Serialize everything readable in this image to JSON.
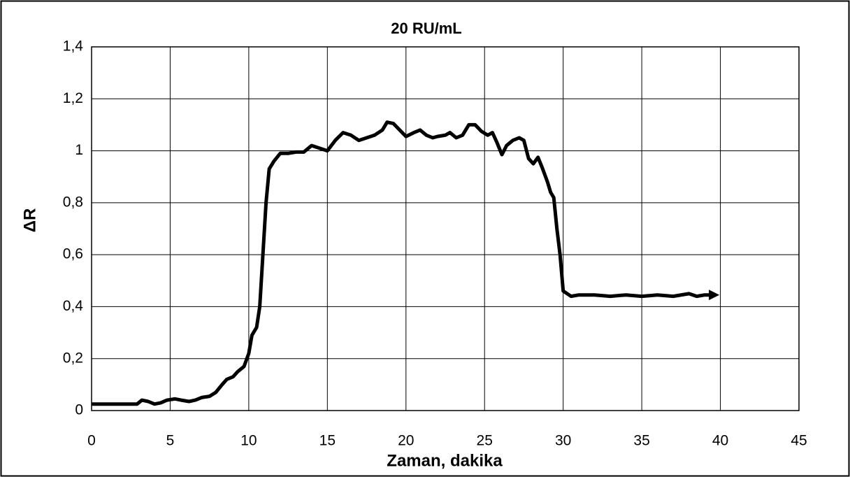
{
  "chart_data": {
    "type": "line",
    "title": "20 RU/mL",
    "xlabel": "Zaman, dakika",
    "ylabel": "ΔR",
    "color": "#000000",
    "grid": true,
    "xlim": [
      0,
      45
    ],
    "xticks": [
      0,
      5,
      10,
      15,
      20,
      25,
      30,
      35,
      40,
      45
    ],
    "ylim": [
      0,
      1.4
    ],
    "yticks": [
      0,
      {
        "value": 0.2,
        "label": "0,2"
      },
      {
        "value": 0.4,
        "label": "0,4"
      },
      {
        "value": 0.6,
        "label": "0,6"
      },
      {
        "value": 0.8,
        "label": "0,8"
      },
      1,
      {
        "value": 1.2,
        "label": "1,2"
      },
      {
        "value": 1.4,
        "label": "1,4"
      }
    ],
    "x": [
      0,
      1,
      2,
      2.9,
      3.2,
      3.6,
      4,
      4.4,
      4.8,
      5.3,
      5.7,
      6.2,
      6.6,
      7,
      7.5,
      7.9,
      8.3,
      8.6,
      9,
      9.3,
      9.7,
      10,
      10.2,
      10.5,
      10.7,
      10.9,
      11.1,
      11.3,
      11.6,
      12,
      12.5,
      13,
      13.5,
      14,
      14.5,
      15,
      15.5,
      16,
      16.5,
      17,
      17.5,
      18,
      18.5,
      18.8,
      19.2,
      19.6,
      20,
      20.5,
      20.9,
      21.3,
      21.7,
      22,
      22.5,
      22.8,
      23.2,
      23.6,
      24,
      24.4,
      24.8,
      25.2,
      25.5,
      25.8,
      26.1,
      26.4,
      26.8,
      27.2,
      27.5,
      27.8,
      28.1,
      28.4,
      28.7,
      29,
      29.2,
      29.4,
      29.6,
      29.8,
      30,
      30.5,
      31,
      32,
      33,
      34,
      35,
      36,
      37,
      38,
      38.5,
      39,
      39.6
    ],
    "values": [
      0.025,
      0.025,
      0.025,
      0.025,
      0.04,
      0.035,
      0.025,
      0.03,
      0.04,
      0.045,
      0.04,
      0.035,
      0.04,
      0.05,
      0.055,
      0.07,
      0.1,
      0.12,
      0.13,
      0.15,
      0.17,
      0.22,
      0.29,
      0.32,
      0.4,
      0.6,
      0.8,
      0.93,
      0.96,
      0.99,
      0.99,
      0.995,
      0.995,
      1.02,
      1.01,
      1.0,
      1.04,
      1.07,
      1.06,
      1.04,
      1.05,
      1.06,
      1.08,
      1.11,
      1.105,
      1.08,
      1.055,
      1.07,
      1.08,
      1.06,
      1.05,
      1.055,
      1.06,
      1.07,
      1.05,
      1.06,
      1.1,
      1.1,
      1.075,
      1.06,
      1.07,
      1.03,
      0.985,
      1.02,
      1.04,
      1.05,
      1.04,
      0.97,
      0.95,
      0.975,
      0.93,
      0.88,
      0.84,
      0.82,
      0.7,
      0.6,
      0.46,
      0.44,
      0.445,
      0.445,
      0.44,
      0.445,
      0.44,
      0.445,
      0.44,
      0.45,
      0.44,
      0.445,
      0.445
    ]
  }
}
